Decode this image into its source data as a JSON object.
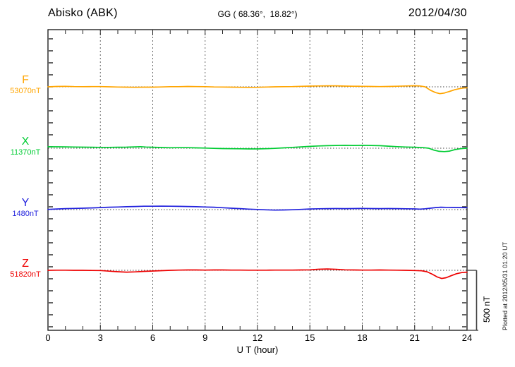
{
  "header": {
    "station": "Abisko (ABK)",
    "coords": "GG ( 68.36°,  18.82°)",
    "date": "2012/04/30"
  },
  "xaxis": {
    "label": "U T (hour)",
    "ticks": [
      0,
      3,
      6,
      9,
      12,
      15,
      18,
      21,
      24
    ]
  },
  "scalebar": {
    "label": "500 nT",
    "nT": 500
  },
  "footer_note": "Plotted at 2012/05/31 01:20 UT",
  "chart_data": {
    "type": "line",
    "title": "Abisko (ABK) magnetogram 2012/04/30",
    "xlabel": "U T (hour)",
    "x_range": [
      0,
      24
    ],
    "x_ticks": [
      0,
      3,
      6,
      9,
      12,
      15,
      18,
      21,
      24
    ],
    "grid_hours": [
      3,
      6,
      9,
      12,
      15,
      18,
      21
    ],
    "minor_tick_nT": 100,
    "scale_bar_nT": 500,
    "grid": true,
    "legend_position": "left",
    "series": [
      {
        "name": "F",
        "baseline_label": "53070nT",
        "baseline_nT": 53070,
        "color": "#FFA500",
        "points": [
          [
            0,
            0
          ],
          [
            0.5,
            3
          ],
          [
            1,
            4
          ],
          [
            1.5,
            2
          ],
          [
            2,
            1
          ],
          [
            2.5,
            2
          ],
          [
            3,
            2
          ],
          [
            3.5,
            0
          ],
          [
            4,
            -2
          ],
          [
            4.5,
            -3
          ],
          [
            5,
            -4
          ],
          [
            5.5,
            -3
          ],
          [
            6,
            -3
          ],
          [
            6.5,
            -1
          ],
          [
            7,
            1
          ],
          [
            7.5,
            1
          ],
          [
            8,
            3
          ],
          [
            8.5,
            2
          ],
          [
            9,
            1
          ],
          [
            9.5,
            -1
          ],
          [
            10,
            -2
          ],
          [
            10.5,
            -3
          ],
          [
            11,
            -4
          ],
          [
            11.5,
            -5
          ],
          [
            12,
            -4
          ],
          [
            12.5,
            -2
          ],
          [
            13,
            0
          ],
          [
            13.5,
            1
          ],
          [
            14,
            2
          ],
          [
            14.5,
            4
          ],
          [
            15,
            6
          ],
          [
            15.5,
            7
          ],
          [
            16,
            8
          ],
          [
            16.5,
            8
          ],
          [
            17,
            6
          ],
          [
            17.5,
            5
          ],
          [
            18,
            4
          ],
          [
            18.5,
            3
          ],
          [
            19,
            2
          ],
          [
            19.5,
            3
          ],
          [
            20,
            5
          ],
          [
            20.5,
            7
          ],
          [
            21,
            9
          ],
          [
            21.3,
            7
          ],
          [
            21.6,
            0
          ],
          [
            21.9,
            -28
          ],
          [
            22.2,
            -48
          ],
          [
            22.45,
            -57
          ],
          [
            22.7,
            -52
          ],
          [
            23,
            -38
          ],
          [
            23.3,
            -24
          ],
          [
            23.6,
            -14
          ],
          [
            23.8,
            -10
          ],
          [
            24,
            -8
          ]
        ]
      },
      {
        "name": "X",
        "baseline_label": "11370nT",
        "baseline_nT": 11370,
        "color": "#00CC33",
        "points": [
          [
            0,
            12
          ],
          [
            0.5,
            12
          ],
          [
            1,
            11
          ],
          [
            1.5,
            10
          ],
          [
            2,
            9
          ],
          [
            2.5,
            8
          ],
          [
            3,
            7
          ],
          [
            3.5,
            7
          ],
          [
            4,
            8
          ],
          [
            4.5,
            9
          ],
          [
            5,
            11
          ],
          [
            5.3,
            13
          ],
          [
            5.6,
            10
          ],
          [
            6,
            8
          ],
          [
            6.5,
            6
          ],
          [
            7,
            4
          ],
          [
            7.5,
            5
          ],
          [
            8,
            5
          ],
          [
            8.5,
            3
          ],
          [
            9,
            1
          ],
          [
            9.5,
            -1
          ],
          [
            10,
            -3
          ],
          [
            10.5,
            -4
          ],
          [
            11,
            -5
          ],
          [
            11.5,
            -6
          ],
          [
            12,
            -6
          ],
          [
            12.5,
            -4
          ],
          [
            13,
            -1
          ],
          [
            13.5,
            3
          ],
          [
            14,
            7
          ],
          [
            14.5,
            11
          ],
          [
            15,
            15
          ],
          [
            15.5,
            19
          ],
          [
            16,
            21
          ],
          [
            16.5,
            23
          ],
          [
            17,
            24
          ],
          [
            17.5,
            23
          ],
          [
            18,
            24
          ],
          [
            18.5,
            23
          ],
          [
            19,
            21
          ],
          [
            19.5,
            17
          ],
          [
            20,
            13
          ],
          [
            20.5,
            10
          ],
          [
            21,
            8
          ],
          [
            21.5,
            5
          ],
          [
            21.8,
            0
          ],
          [
            22.1,
            -16
          ],
          [
            22.4,
            -26
          ],
          [
            22.7,
            -28
          ],
          [
            23,
            -24
          ],
          [
            23.3,
            -12
          ],
          [
            23.6,
            -5
          ],
          [
            23.8,
            -2
          ],
          [
            24,
            0
          ]
        ]
      },
      {
        "name": "Y",
        "baseline_label": "1480nT",
        "baseline_nT": 1480,
        "color": "#2222DD",
        "points": [
          [
            0,
            2
          ],
          [
            0.5,
            5
          ],
          [
            1,
            8
          ],
          [
            1.5,
            10
          ],
          [
            2,
            12
          ],
          [
            2.5,
            14
          ],
          [
            3,
            17
          ],
          [
            3.5,
            20
          ],
          [
            4,
            22
          ],
          [
            4.5,
            24
          ],
          [
            5,
            26
          ],
          [
            5.5,
            28
          ],
          [
            6,
            28
          ],
          [
            6.5,
            29
          ],
          [
            7,
            28
          ],
          [
            7.5,
            27
          ],
          [
            8,
            26
          ],
          [
            8.5,
            24
          ],
          [
            9,
            22
          ],
          [
            9.5,
            20
          ],
          [
            10,
            16
          ],
          [
            10.5,
            12
          ],
          [
            11,
            8
          ],
          [
            11.5,
            4
          ],
          [
            12,
            1
          ],
          [
            12.5,
            -2
          ],
          [
            13,
            -4
          ],
          [
            13.5,
            -3
          ],
          [
            14,
            -1
          ],
          [
            14.5,
            2
          ],
          [
            15,
            5
          ],
          [
            15.5,
            7
          ],
          [
            16,
            8
          ],
          [
            16.5,
            9
          ],
          [
            17,
            8
          ],
          [
            17.5,
            9
          ],
          [
            18,
            10
          ],
          [
            18.5,
            9
          ],
          [
            19,
            8
          ],
          [
            19.5,
            9
          ],
          [
            20,
            8
          ],
          [
            20.5,
            7
          ],
          [
            21,
            6
          ],
          [
            21.3,
            4
          ],
          [
            21.6,
            7
          ],
          [
            21.9,
            12
          ],
          [
            22.2,
            17
          ],
          [
            22.5,
            20
          ],
          [
            22.8,
            19
          ],
          [
            23.2,
            18
          ],
          [
            23.6,
            17
          ],
          [
            24,
            16
          ]
        ]
      },
      {
        "name": "Z",
        "baseline_label": "51820nT",
        "baseline_nT": 51820,
        "color": "#EE0000",
        "points": [
          [
            0,
            0
          ],
          [
            0.5,
            1
          ],
          [
            1,
            1
          ],
          [
            1.5,
            0
          ],
          [
            2,
            0
          ],
          [
            2.5,
            -1
          ],
          [
            3,
            -2
          ],
          [
            3.5,
            -7
          ],
          [
            4,
            -12
          ],
          [
            4.5,
            -15
          ],
          [
            5,
            -13
          ],
          [
            5.5,
            -9
          ],
          [
            6,
            -6
          ],
          [
            6.5,
            -3
          ],
          [
            7,
            0
          ],
          [
            7.5,
            2
          ],
          [
            8,
            3
          ],
          [
            8.5,
            3
          ],
          [
            9,
            2
          ],
          [
            9.5,
            3
          ],
          [
            10,
            3
          ],
          [
            10.5,
            2
          ],
          [
            11,
            2
          ],
          [
            11.5,
            1
          ],
          [
            12,
            1
          ],
          [
            12.5,
            1
          ],
          [
            13,
            2
          ],
          [
            13.5,
            2
          ],
          [
            14,
            2
          ],
          [
            14.5,
            3
          ],
          [
            15,
            4
          ],
          [
            15.5,
            9
          ],
          [
            16,
            11
          ],
          [
            16.5,
            8
          ],
          [
            17,
            4
          ],
          [
            17.5,
            3
          ],
          [
            18,
            2
          ],
          [
            18.5,
            2
          ],
          [
            19,
            3
          ],
          [
            19.5,
            2
          ],
          [
            20,
            1
          ],
          [
            20.5,
            0
          ],
          [
            21,
            -2
          ],
          [
            21.4,
            -4
          ],
          [
            21.7,
            -12
          ],
          [
            22,
            -32
          ],
          [
            22.3,
            -56
          ],
          [
            22.55,
            -68
          ],
          [
            22.8,
            -62
          ],
          [
            23.1,
            -45
          ],
          [
            23.4,
            -28
          ],
          [
            23.7,
            -19
          ],
          [
            24,
            -15
          ]
        ]
      }
    ]
  }
}
